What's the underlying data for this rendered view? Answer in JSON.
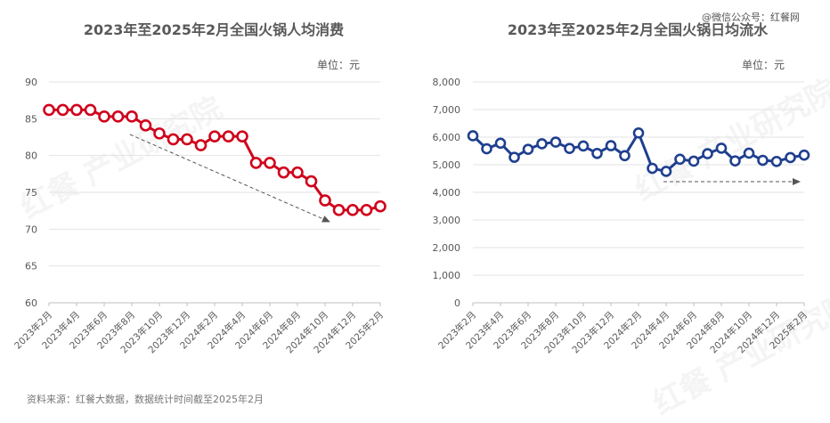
{
  "watermark": "@微信公众号：红餐网",
  "source_note": "资料来源：红餐大数据，数据统计时间截至2025年2月",
  "background_watermark": "红餐 产业研究院",
  "chart_data": [
    {
      "type": "line",
      "title": "2023年至2025年2月全国火锅人均消费",
      "unit_label": "单位：元",
      "x": [
        "2023年2月",
        "2023年3月",
        "2023年4月",
        "2023年5月",
        "2023年6月",
        "2023年7月",
        "2023年8月",
        "2023年9月",
        "2023年10月",
        "2023年11月",
        "2023年12月",
        "2024年1月",
        "2024年2月",
        "2024年3月",
        "2024年4月",
        "2024年5月",
        "2024年6月",
        "2024年7月",
        "2024年8月",
        "2024年9月",
        "2024年10月",
        "2024年11月",
        "2024年12月",
        "2025年1月",
        "2025年2月"
      ],
      "tick_labels": [
        "2023年2月",
        "2023年4月",
        "2023年6月",
        "2023年8月",
        "2023年10月",
        "2023年12月",
        "2024年2月",
        "2024年4月",
        "2024年6月",
        "2024年8月",
        "2024年10月",
        "2024年12月",
        "2025年2月"
      ],
      "series": [
        {
          "values": [
            86.2,
            86.2,
            86.2,
            86.2,
            85.3,
            85.3,
            85.3,
            84.1,
            83.0,
            82.2,
            82.2,
            81.4,
            82.6,
            82.6,
            82.6,
            79.0,
            79.0,
            77.7,
            77.7,
            76.5,
            73.9,
            72.6,
            72.6,
            72.6,
            73.1
          ]
        }
      ],
      "ylim": [
        60,
        90
      ],
      "yticks": [
        60,
        65,
        70,
        75,
        80,
        85,
        90
      ],
      "ytick_labels": [
        "60",
        "65",
        "70",
        "75",
        "80",
        "85",
        "90"
      ],
      "grid": true,
      "trend": "down",
      "color": "#d0021b"
    },
    {
      "type": "line",
      "title": "2023年至2025年2月全国火锅日均流水",
      "unit_label": "单位：元",
      "x": [
        "2023年2月",
        "2023年3月",
        "2023年4月",
        "2023年5月",
        "2023年6月",
        "2023年7月",
        "2023年8月",
        "2023年9月",
        "2023年10月",
        "2023年11月",
        "2023年12月",
        "2024年1月",
        "2024年2月",
        "2024年3月",
        "2024年4月",
        "2024年5月",
        "2024年6月",
        "2024年7月",
        "2024年8月",
        "2024年9月",
        "2024年10月",
        "2024年11月",
        "2024年12月",
        "2025年1月",
        "2025年2月"
      ],
      "tick_labels": [
        "2023年2月",
        "2023年4月",
        "2023年6月",
        "2023年8月",
        "2023年10月",
        "2023年12月",
        "2024年2月",
        "2024年4月",
        "2024年6月",
        "2024年8月",
        "2024年10月",
        "2024年12月",
        "2025年2月"
      ],
      "series": [
        {
          "values": [
            6050,
            5580,
            5780,
            5270,
            5560,
            5760,
            5820,
            5590,
            5680,
            5410,
            5690,
            5330,
            6150,
            4870,
            4760,
            5200,
            5130,
            5400,
            5600,
            5140,
            5420,
            5160,
            5120,
            5260,
            5350
          ]
        }
      ],
      "ylim": [
        0,
        8000
      ],
      "yticks": [
        0,
        1000,
        2000,
        3000,
        4000,
        5000,
        6000,
        7000,
        8000
      ],
      "ytick_labels": [
        "0",
        "1,000",
        "2,000",
        "3,000",
        "4,000",
        "5,000",
        "6,000",
        "7,000",
        "8,000"
      ],
      "grid": true,
      "trend": "flat",
      "color": "#1f3f8f"
    }
  ]
}
